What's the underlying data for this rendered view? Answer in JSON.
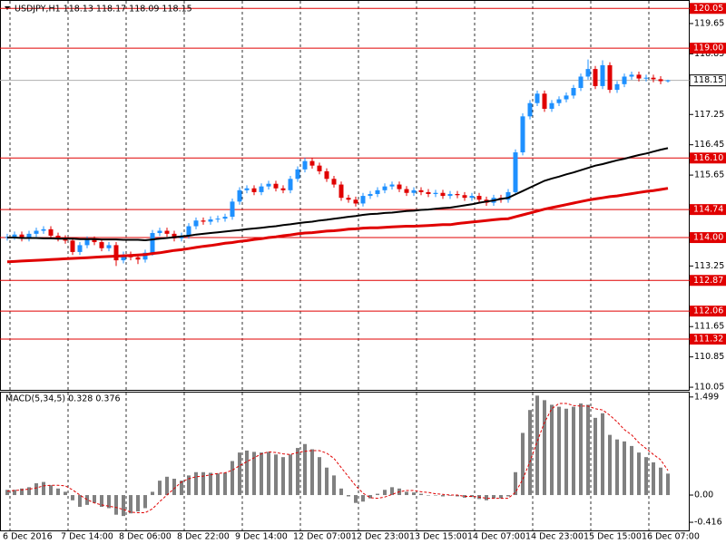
{
  "chart_data": {
    "type": "candlestick",
    "title": "USDJPY,H1  118.13 118.17 118.09 118.15",
    "up_color": "#1e90ff",
    "down_color": "#e00000",
    "categories": [
      "6 Dec 2016",
      null,
      null,
      null,
      null,
      null,
      null,
      null,
      "7 Dec 14:00",
      null,
      null,
      null,
      null,
      null,
      null,
      null,
      "8 Dec 06:00",
      null,
      null,
      null,
      null,
      null,
      null,
      null,
      "8 Dec 22:00",
      null,
      null,
      null,
      null,
      null,
      null,
      null,
      "9 Dec 14:00",
      null,
      null,
      null,
      null,
      null,
      null,
      null,
      "12 Dec 07:00",
      null,
      null,
      null,
      null,
      null,
      null,
      null,
      "12 Dec 23:00",
      null,
      null,
      null,
      null,
      null,
      null,
      null,
      "13 Dec 15:00",
      null,
      null,
      null,
      null,
      null,
      null,
      null,
      "14 Dec 07:00",
      null,
      null,
      null,
      null,
      null,
      null,
      null,
      "14 Dec 23:00",
      null,
      null,
      null,
      null,
      null,
      null,
      null,
      "15 Dec 15:00",
      null,
      null,
      null,
      null,
      null,
      null,
      null,
      "16 Dec 07:00",
      null,
      null,
      null
    ],
    "open": [
      114.0,
      114.02,
      114.08,
      113.98,
      114.1,
      114.18,
      114.22,
      114.05,
      113.98,
      113.92,
      113.62,
      113.8,
      113.95,
      113.88,
      113.72,
      113.8,
      113.4,
      113.55,
      113.48,
      113.42,
      113.6,
      114.12,
      114.18,
      114.1,
      113.98,
      114.05,
      114.3,
      114.45,
      114.42,
      114.48,
      114.5,
      114.55,
      114.95,
      115.25,
      115.3,
      115.2,
      115.35,
      115.42,
      115.3,
      115.25,
      115.55,
      115.8,
      116.02,
      115.9,
      115.75,
      115.55,
      115.4,
      115.05,
      115.0,
      114.9,
      115.1,
      115.15,
      115.25,
      115.35,
      115.4,
      115.28,
      115.18,
      115.25,
      115.2,
      115.15,
      115.18,
      115.1,
      115.15,
      115.12,
      115.05,
      115.1,
      115.0,
      114.92,
      115.05,
      115.0,
      115.2,
      116.25,
      117.2,
      117.55,
      117.8,
      117.4,
      117.55,
      117.65,
      117.75,
      117.95,
      118.25,
      118.45,
      118.0,
      118.55,
      117.9,
      118.05,
      118.25,
      118.3,
      118.2,
      118.22,
      118.18,
      118.13
    ],
    "high": [
      114.1,
      114.16,
      114.16,
      114.18,
      114.26,
      114.3,
      114.3,
      114.13,
      114.06,
      114.0,
      113.88,
      114.03,
      114.03,
      113.96,
      113.88,
      113.88,
      113.63,
      113.63,
      113.56,
      113.68,
      114.2,
      114.26,
      114.26,
      114.18,
      114.13,
      114.38,
      114.53,
      114.53,
      114.56,
      114.58,
      114.63,
      115.03,
      115.33,
      115.38,
      115.38,
      115.43,
      115.5,
      115.5,
      115.38,
      115.63,
      115.88,
      116.1,
      116.1,
      115.98,
      115.83,
      115.63,
      115.48,
      115.13,
      115.08,
      115.18,
      115.23,
      115.33,
      115.43,
      115.48,
      115.48,
      115.36,
      115.33,
      115.33,
      115.28,
      115.26,
      115.26,
      115.23,
      115.23,
      115.2,
      115.18,
      115.18,
      115.08,
      115.13,
      115.13,
      115.28,
      116.33,
      117.28,
      117.63,
      117.88,
      117.88,
      117.63,
      117.73,
      117.83,
      118.03,
      118.33,
      118.7,
      118.53,
      118.68,
      118.63,
      118.13,
      118.33,
      118.38,
      118.38,
      118.3,
      118.3,
      118.26,
      118.17
    ],
    "low": [
      113.92,
      113.94,
      113.9,
      113.9,
      114.02,
      114.1,
      113.97,
      113.9,
      113.84,
      113.54,
      113.54,
      113.72,
      113.8,
      113.64,
      113.64,
      113.25,
      113.32,
      113.4,
      113.3,
      113.34,
      113.52,
      114.04,
      114.02,
      113.9,
      113.9,
      113.97,
      114.22,
      114.34,
      114.34,
      114.4,
      114.42,
      114.47,
      114.87,
      115.17,
      115.12,
      115.12,
      115.27,
      115.22,
      115.17,
      115.17,
      115.47,
      115.72,
      115.82,
      115.67,
      115.47,
      115.32,
      114.97,
      114.92,
      114.82,
      114.82,
      115.02,
      115.07,
      115.17,
      115.27,
      115.2,
      115.1,
      115.1,
      115.12,
      115.07,
      115.07,
      115.02,
      115.02,
      115.04,
      114.97,
      114.97,
      114.92,
      114.84,
      114.84,
      114.92,
      114.92,
      115.12,
      116.17,
      117.12,
      117.47,
      117.32,
      117.32,
      117.47,
      117.57,
      117.67,
      117.87,
      118.17,
      117.92,
      117.92,
      117.82,
      117.82,
      117.97,
      118.17,
      118.12,
      118.12,
      118.1,
      118.05,
      118.09
    ],
    "close": [
      114.02,
      114.08,
      113.98,
      114.1,
      114.18,
      114.22,
      114.05,
      113.98,
      113.92,
      113.62,
      113.8,
      113.95,
      113.88,
      113.72,
      113.8,
      113.4,
      113.55,
      113.48,
      113.42,
      113.6,
      114.12,
      114.18,
      114.1,
      113.98,
      114.05,
      114.3,
      114.45,
      114.42,
      114.48,
      114.5,
      114.55,
      114.95,
      115.25,
      115.3,
      115.2,
      115.35,
      115.42,
      115.3,
      115.25,
      115.55,
      115.8,
      116.02,
      115.9,
      115.75,
      115.55,
      115.4,
      115.05,
      115.0,
      114.9,
      115.1,
      115.15,
      115.25,
      115.35,
      115.4,
      115.28,
      115.18,
      115.25,
      115.2,
      115.15,
      115.18,
      115.1,
      115.15,
      115.12,
      115.05,
      115.1,
      115.0,
      114.92,
      115.05,
      115.0,
      115.2,
      116.25,
      117.2,
      117.55,
      117.8,
      117.4,
      117.55,
      117.65,
      117.75,
      117.95,
      118.25,
      118.45,
      118.0,
      118.55,
      117.9,
      118.05,
      118.25,
      118.3,
      118.2,
      118.22,
      118.18,
      118.13,
      118.15
    ],
    "series": [
      {
        "color": "#000000",
        "values": [
          114.0,
          114.0,
          113.99,
          113.99,
          113.99,
          113.98,
          113.98,
          113.97,
          113.97,
          113.97,
          113.96,
          113.96,
          113.96,
          113.95,
          113.95,
          113.95,
          113.94,
          113.94,
          113.94,
          113.93,
          113.95,
          113.97,
          113.99,
          114.01,
          114.03,
          114.05,
          114.08,
          114.1,
          114.12,
          114.14,
          114.16,
          114.18,
          114.2,
          114.22,
          114.24,
          114.26,
          114.28,
          114.3,
          114.33,
          114.35,
          114.38,
          114.4,
          114.42,
          114.45,
          114.47,
          114.5,
          114.52,
          114.55,
          114.57,
          114.6,
          114.62,
          114.63,
          114.65,
          114.66,
          114.68,
          114.7,
          114.71,
          114.73,
          114.74,
          114.76,
          114.78,
          114.79,
          114.82,
          114.85,
          114.88,
          114.92,
          114.95,
          114.98,
          115.02,
          115.05,
          115.14,
          115.23,
          115.32,
          115.41,
          115.5,
          115.56,
          115.61,
          115.67,
          115.72,
          115.78,
          115.84,
          115.9,
          115.94,
          115.99,
          116.04,
          116.08,
          116.13,
          116.18,
          116.22,
          116.27,
          116.32,
          116.36
        ]
      },
      {
        "color": "#e00000",
        "values": [
          113.36,
          113.37,
          113.38,
          113.39,
          113.4,
          113.41,
          113.42,
          113.43,
          113.44,
          113.45,
          113.46,
          113.47,
          113.48,
          113.49,
          113.5,
          113.51,
          113.52,
          113.53,
          113.54,
          113.55,
          113.58,
          113.6,
          113.63,
          113.66,
          113.68,
          113.71,
          113.74,
          113.77,
          113.79,
          113.82,
          113.85,
          113.87,
          113.9,
          113.92,
          113.95,
          113.97,
          114.0,
          114.02,
          114.05,
          114.07,
          114.1,
          114.12,
          114.13,
          114.15,
          114.17,
          114.18,
          114.2,
          114.22,
          114.23,
          114.25,
          114.26,
          114.26,
          114.27,
          114.28,
          114.29,
          114.3,
          114.3,
          114.31,
          114.32,
          114.33,
          114.34,
          114.34,
          114.37,
          114.39,
          114.41,
          114.43,
          114.45,
          114.47,
          114.49,
          114.5,
          114.55,
          114.6,
          114.65,
          114.7,
          114.75,
          114.79,
          114.83,
          114.87,
          114.91,
          114.95,
          114.99,
          115.02,
          115.05,
          115.08,
          115.1,
          115.13,
          115.16,
          115.19,
          115.22,
          115.24,
          115.27,
          115.3
        ]
      }
    ],
    "ylim": [
      109.98,
      120.2
    ],
    "yticks": [
      119.65,
      118.85,
      117.25,
      116.45,
      115.65,
      113.25,
      111.65,
      110.85,
      110.05
    ],
    "levels_color": "#e00000",
    "levels": [
      120.05,
      {
        "value": 119.0,
        "label": "119.00"
      },
      {
        "value": 116.1,
        "label": "116.10"
      },
      114.74,
      {
        "value": 114.0,
        "label": "114.00"
      },
      112.87,
      112.06,
      111.32
    ],
    "last_price": 118.15,
    "macd": {
      "title": "MACD(5,34,5) 0.328 0.376",
      "histogram_color": "#808080",
      "signal_color": "#e00000",
      "histogram": [
        0.08,
        0.08,
        0.1,
        0.12,
        0.18,
        0.2,
        0.15,
        0.1,
        0.05,
        -0.08,
        -0.18,
        -0.15,
        -0.12,
        -0.18,
        -0.2,
        -0.3,
        -0.32,
        -0.28,
        -0.25,
        -0.2,
        0.05,
        0.22,
        0.28,
        0.25,
        0.22,
        0.3,
        0.35,
        0.35,
        0.34,
        0.33,
        0.34,
        0.52,
        0.65,
        0.68,
        0.66,
        0.65,
        0.66,
        0.62,
        0.58,
        0.62,
        0.72,
        0.78,
        0.7,
        0.58,
        0.42,
        0.3,
        0.1,
        -0.02,
        -0.12,
        -0.1,
        -0.05,
        0.02,
        0.08,
        0.12,
        0.1,
        0.05,
        0.04,
        0.02,
        0.0,
        0.0,
        -0.02,
        -0.01,
        -0.02,
        -0.04,
        -0.03,
        -0.06,
        -0.08,
        -0.05,
        -0.05,
        -0.02,
        0.35,
        0.95,
        1.3,
        1.52,
        1.45,
        1.38,
        1.35,
        1.32,
        1.35,
        1.4,
        1.38,
        1.18,
        1.25,
        0.92,
        0.85,
        0.82,
        0.75,
        0.65,
        0.58,
        0.5,
        0.42,
        0.328
      ],
      "signal": [
        0.06,
        0.07,
        0.08,
        0.09,
        0.11,
        0.14,
        0.15,
        0.15,
        0.14,
        0.08,
        0.0,
        -0.07,
        -0.12,
        -0.15,
        -0.17,
        -0.19,
        -0.22,
        -0.26,
        -0.27,
        -0.27,
        -0.21,
        -0.1,
        0.0,
        0.1,
        0.2,
        0.25,
        0.28,
        0.29,
        0.31,
        0.33,
        0.34,
        0.38,
        0.45,
        0.51,
        0.57,
        0.63,
        0.66,
        0.65,
        0.63,
        0.62,
        0.65,
        0.67,
        0.68,
        0.68,
        0.64,
        0.56,
        0.42,
        0.28,
        0.14,
        0.03,
        -0.04,
        -0.05,
        -0.03,
        0.01,
        0.05,
        0.07,
        0.07,
        0.05,
        0.04,
        0.02,
        0.01,
        0.0,
        0.0,
        -0.02,
        -0.02,
        -0.03,
        -0.05,
        -0.05,
        -0.05,
        -0.05,
        0.04,
        0.24,
        0.51,
        0.82,
        1.11,
        1.32,
        1.4,
        1.4,
        1.37,
        1.36,
        1.36,
        1.32,
        1.3,
        1.22,
        1.12,
        1.0,
        0.92,
        0.8,
        0.71,
        0.62,
        0.54,
        0.376
      ],
      "ylim": [
        -0.54,
        1.58
      ],
      "yticks": [
        1.499,
        {
          "value": 0,
          "label": "0.00"
        },
        -0.416
      ]
    }
  }
}
